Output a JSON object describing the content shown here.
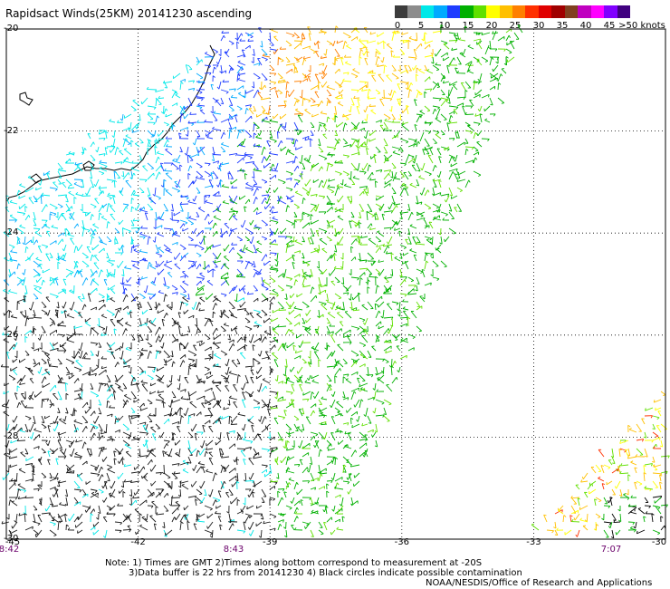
{
  "title": "Rapidsact Winds(25KM) 20141230 ascending",
  "legend": {
    "ticks": [
      "0",
      "5",
      "10",
      "15",
      "20",
      "25",
      "30",
      "35",
      "40",
      "45",
      ">50 knots"
    ],
    "colors": [
      "#3c3c3c",
      "#8c8c8c",
      "#00e8e8",
      "#00aaff",
      "#1e3cff",
      "#00b000",
      "#60e000",
      "#ffff00",
      "#ffc000",
      "#ff8000",
      "#ff3000",
      "#e00000",
      "#a00000",
      "#804020",
      "#c000c0",
      "#ff00ff",
      "#8000ff",
      "#400080"
    ]
  },
  "axes": {
    "lat_labels": [
      "-20",
      "-22",
      "-24",
      "-26",
      "-28",
      "-30"
    ],
    "lon_labels": [
      "-45",
      "-42",
      "-39",
      "-36",
      "-33",
      "-30"
    ],
    "lat_range": [
      -20,
      -30
    ],
    "lon_range": [
      -45,
      -30
    ]
  },
  "times": [
    "8:42",
    "8:43",
    "7:07"
  ],
  "notes": [
    "Note: 1) Times are GMT 2)Times along bottom correspond to measurement at -20S",
    "3)Data buffer is 22 hrs from 20141230 4) Black circles indicate possible contamination",
    "NOAA/NESDIS/Office of Research and Applications"
  ]
}
